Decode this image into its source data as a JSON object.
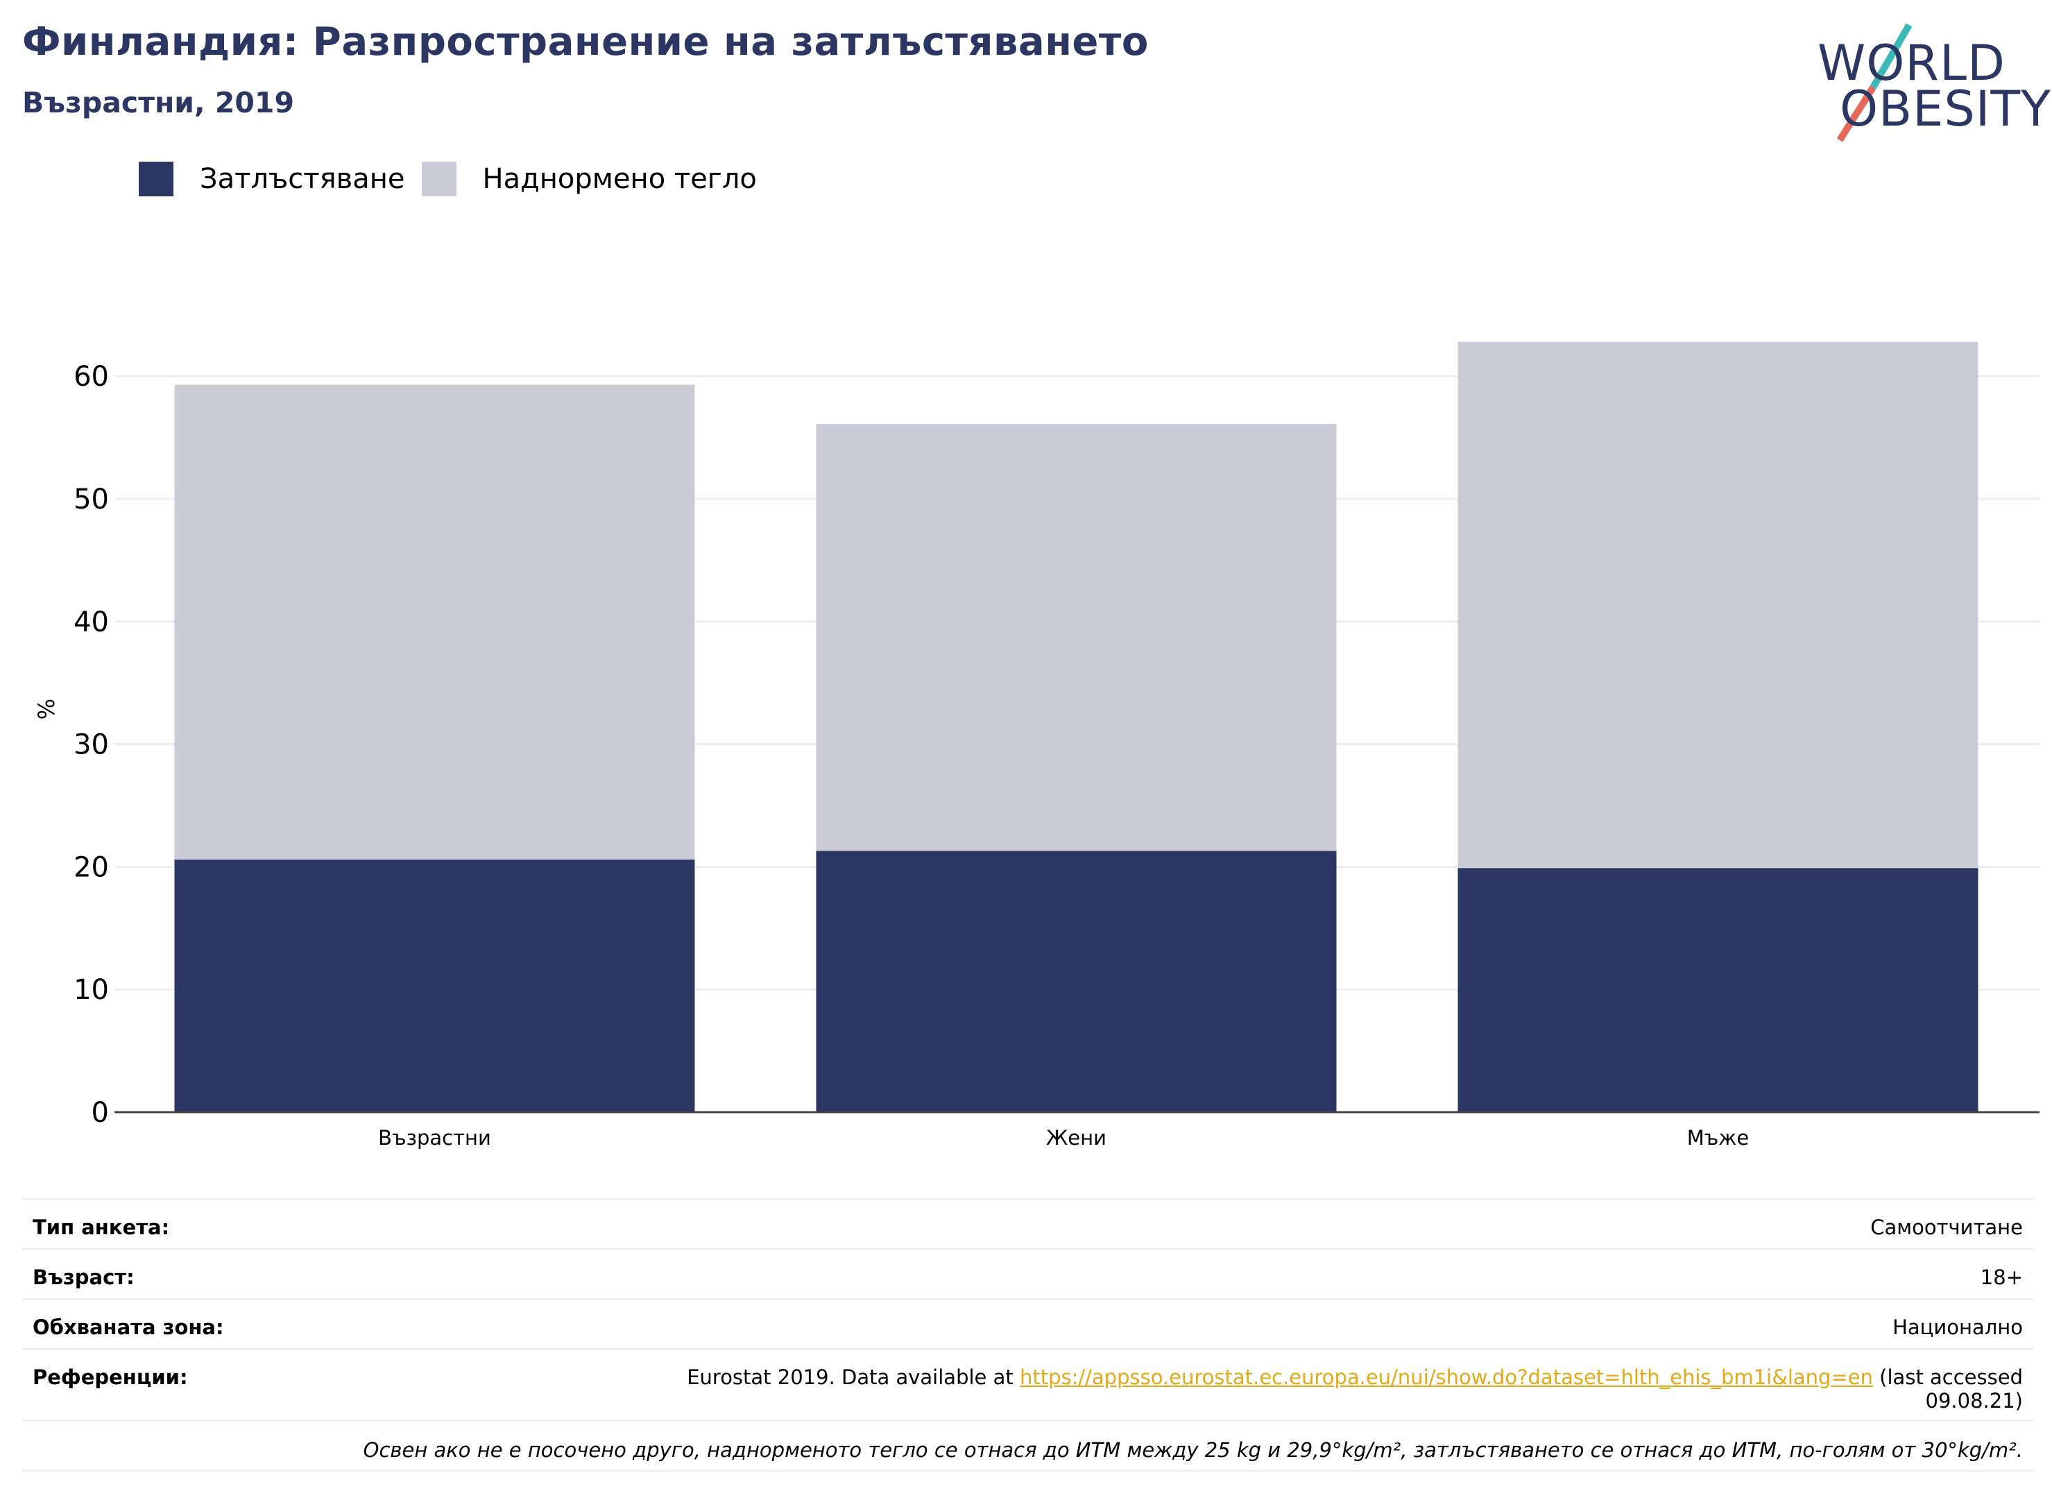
{
  "header": {
    "title": "Финландия: Разпространение на затлъстяването",
    "subtitle": "Възрастни, 2019"
  },
  "logo": {
    "line1": "WORLD",
    "line2": "OBESITY"
  },
  "legend": [
    {
      "label": "Затлъстяване",
      "color": "#2b3663"
    },
    {
      "label": "Наднормено тегло",
      "color": "#cbccd8"
    }
  ],
  "chart_data": {
    "type": "bar",
    "stacked": true,
    "categories": [
      "Възрастни",
      "Жени",
      "Мъже"
    ],
    "series": [
      {
        "name": "Затлъстяване",
        "values": [
          20.6,
          21.3,
          19.9
        ],
        "color": "#2b3663"
      },
      {
        "name": "Наднормено тегло",
        "values": [
          38.7,
          34.8,
          42.9
        ],
        "color": "#cbccd8"
      }
    ],
    "ylabel": "%",
    "ylim": [
      0,
      63
    ],
    "yticks": [
      0,
      10,
      20,
      30,
      40,
      50,
      60
    ],
    "grid": true,
    "legend_position": "top-left"
  },
  "info": {
    "survey_type_label": "Тип анкета:",
    "survey_type_value": "Самоотчитане",
    "age_label": "Възраст:",
    "age_value": "18+",
    "area_label": "Обхваната зона:",
    "area_value": "Национално",
    "references_label": "Референции:",
    "references_prefix": "Eurostat 2019. Data available at ",
    "references_link": "https://appsso.eurostat.ec.europa.eu/nui/show.do?dataset=hlth_ehis_bm1i&lang=en",
    "references_suffix": " (last accessed",
    "references_date": "09.08.21)",
    "note": "Освен ако не е посочено друго, наднорменото тегло се отнася до ИТМ между 25 kg и 29,9°kg/m², затлъстяването се отнася до ИТМ, по-голям от 30°kg/m²."
  }
}
